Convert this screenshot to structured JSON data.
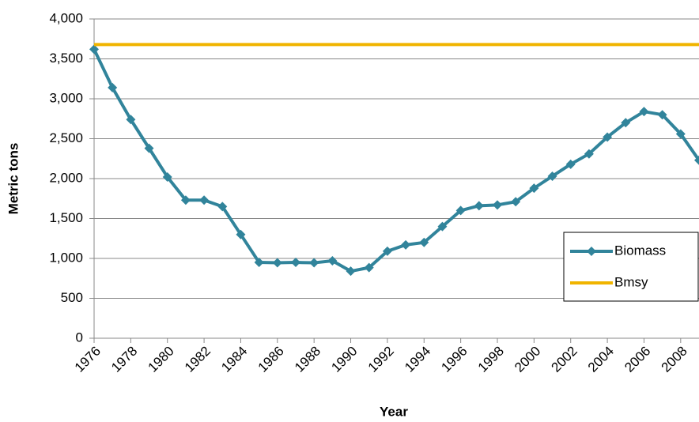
{
  "chart_data": {
    "type": "line",
    "x_label": "Year",
    "y_label": "Metric tons",
    "x": [
      1976,
      1977,
      1978,
      1979,
      1980,
      1981,
      1982,
      1983,
      1984,
      1985,
      1986,
      1987,
      1988,
      1989,
      1990,
      1991,
      1992,
      1993,
      1994,
      1995,
      1996,
      1997,
      1998,
      1999,
      2000,
      2001,
      2002,
      2003,
      2004,
      2005,
      2006,
      2007,
      2008,
      2009
    ],
    "series": [
      {
        "name": "Biomass",
        "color": "#31849b",
        "marker": "diamond",
        "values": [
          3620,
          3140,
          2740,
          2380,
          2020,
          1730,
          1730,
          1650,
          1300,
          950,
          945,
          950,
          945,
          970,
          840,
          885,
          1090,
          1170,
          1200,
          1400,
          1600,
          1660,
          1670,
          1710,
          1880,
          2030,
          2180,
          2310,
          2520,
          2700,
          2840,
          2800,
          2560,
          2230
        ]
      },
      {
        "name": "Bmsy",
        "color": "#f0b400",
        "marker": "none",
        "values": [
          3680,
          3680,
          3680,
          3680,
          3680,
          3680,
          3680,
          3680,
          3680,
          3680,
          3680,
          3680,
          3680,
          3680,
          3680,
          3680,
          3680,
          3680,
          3680,
          3680,
          3680,
          3680,
          3680,
          3680,
          3680,
          3680,
          3680,
          3680,
          3680,
          3680,
          3680,
          3680,
          3680,
          3680
        ]
      }
    ],
    "xlim": [
      1976,
      2009
    ],
    "xticks": [
      1976,
      1978,
      1980,
      1982,
      1984,
      1986,
      1988,
      1990,
      1992,
      1994,
      1996,
      1998,
      2000,
      2002,
      2004,
      2006,
      2008
    ],
    "ylim": [
      0,
      4000
    ],
    "yticks": [
      0,
      {
        "value": 500,
        "label": "500"
      },
      {
        "value": 1000,
        "label": "1,000"
      },
      {
        "value": 1500,
        "label": "1,500"
      },
      {
        "value": 2000,
        "label": "2,000"
      },
      {
        "value": 2500,
        "label": "2,500"
      },
      {
        "value": 3000,
        "label": "3,000"
      },
      {
        "value": 3500,
        "label": "3,500"
      },
      {
        "value": 4000,
        "label": "4,000"
      }
    ],
    "grid": true,
    "legend": "right"
  }
}
